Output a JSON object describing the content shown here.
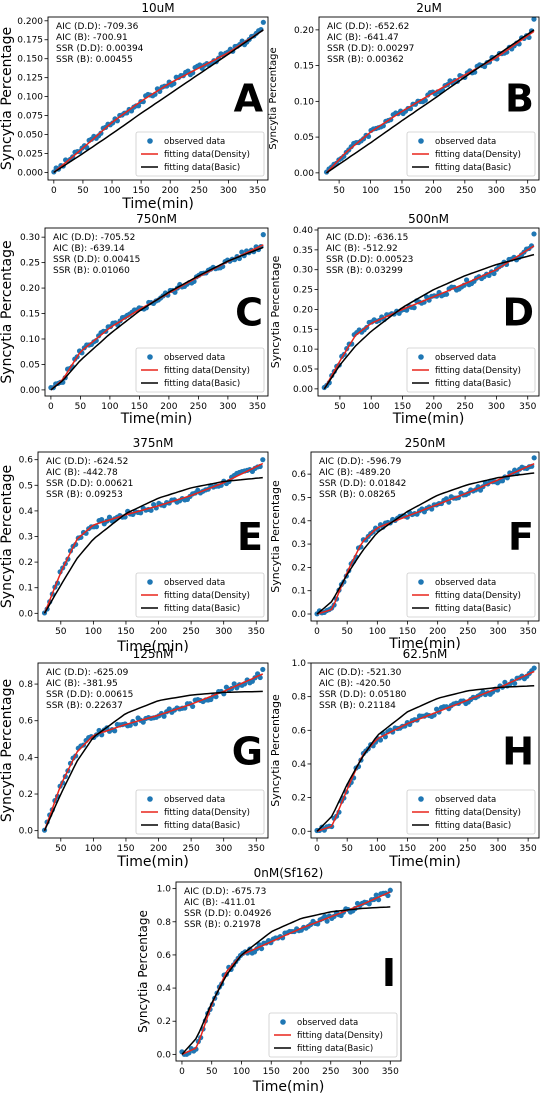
{
  "figure": {
    "observed_color": "#1f77b4",
    "density_color": "#e8251c",
    "basic_color": "#000000"
  },
  "chart_data": [
    {
      "type": "scatter",
      "panel": "A",
      "title": "10uM",
      "xlabel": "Time(min)",
      "ylabel": "Syncytia Percentage",
      "xlim": [
        -10,
        368
      ],
      "ylim": [
        -0.01,
        0.205
      ],
      "xticks": [
        0,
        50,
        100,
        150,
        200,
        250,
        300,
        350
      ],
      "yticks": [
        0.0,
        0.025,
        0.05,
        0.075,
        0.1,
        0.125,
        0.15,
        0.175,
        0.2
      ],
      "ytick_labels": [
        "0.000",
        "0.025",
        "0.050",
        "0.075",
        "0.100",
        "0.125",
        "0.150",
        "0.175",
        "0.200"
      ],
      "stats": [
        "AIC (D.D): -709.36",
        "AIC (B): -700.91",
        "SSR (D.D): 0.00394",
        "SSR (B): 0.00455"
      ],
      "legend": [
        "observed data",
        "fitting data(Density)",
        "fitting data(Basic)"
      ],
      "x_range": [
        0,
        360
      ],
      "n_points": 90,
      "density_curve": [
        [
          0,
          0.0
        ],
        [
          50,
          0.032
        ],
        [
          100,
          0.066
        ],
        [
          150,
          0.094
        ],
        [
          200,
          0.118
        ],
        [
          250,
          0.138
        ],
        [
          300,
          0.158
        ],
        [
          360,
          0.188
        ]
      ],
      "basic_curve": [
        [
          0,
          0.0
        ],
        [
          50,
          0.025
        ],
        [
          100,
          0.051
        ],
        [
          150,
          0.078
        ],
        [
          200,
          0.104
        ],
        [
          250,
          0.13
        ],
        [
          300,
          0.156
        ],
        [
          360,
          0.188
        ]
      ],
      "observed_end": 0.198
    },
    {
      "type": "scatter",
      "panel": "B",
      "title": "2uM",
      "xlabel": "",
      "ylabel": "Syncytia Percentage",
      "xlim": [
        18,
        368
      ],
      "ylim": [
        -0.01,
        0.218
      ],
      "xticks": [
        50,
        100,
        150,
        200,
        250,
        300,
        350
      ],
      "yticks": [
        0.0,
        0.05,
        0.1,
        0.15,
        0.2
      ],
      "ytick_labels": [
        "0.00",
        "0.05",
        "0.10",
        "0.15",
        "0.20"
      ],
      "stats": [
        "AIC (D.D): -652.62",
        "AIC (B): -641.47",
        "SSR (D.D): 0.00297",
        "SSR (B): 0.00362"
      ],
      "legend": [
        "observed data",
        "fitting data(Density)",
        "fitting data(Basic)"
      ],
      "x_range": [
        30,
        360
      ],
      "n_points": 85,
      "density_curve": [
        [
          30,
          0.0
        ],
        [
          60,
          0.028
        ],
        [
          100,
          0.057
        ],
        [
          150,
          0.086
        ],
        [
          200,
          0.112
        ],
        [
          250,
          0.137
        ],
        [
          300,
          0.161
        ],
        [
          360,
          0.198
        ]
      ],
      "basic_curve": [
        [
          30,
          0.0
        ],
        [
          60,
          0.018
        ],
        [
          100,
          0.042
        ],
        [
          150,
          0.073
        ],
        [
          200,
          0.103
        ],
        [
          250,
          0.134
        ],
        [
          300,
          0.164
        ],
        [
          360,
          0.2
        ]
      ],
      "observed_end": 0.215
    },
    {
      "type": "scatter",
      "panel": "C",
      "title": "750nM",
      "xlabel": "Time(min)",
      "ylabel": "Syncytia Percentage",
      "xlim": [
        -10,
        368
      ],
      "ylim": [
        -0.012,
        0.318
      ],
      "xticks": [
        0,
        50,
        100,
        150,
        200,
        250,
        300,
        350
      ],
      "yticks": [
        0.0,
        0.05,
        0.1,
        0.15,
        0.2,
        0.25,
        0.3
      ],
      "ytick_labels": [
        "0.00",
        "0.05",
        "0.10",
        "0.15",
        "0.20",
        "0.25",
        "0.30"
      ],
      "stats": [
        "AIC (D.D): -705.52",
        "AIC (B): -639.14",
        "SSR (D.D): 0.00415",
        "SSR (B): 0.01060"
      ],
      "legend": [
        "observed data",
        "fitting data(Density)",
        "fitting data(Basic)"
      ],
      "x_range": [
        0,
        360
      ],
      "n_points": 90,
      "density_curve": [
        [
          0,
          0.0
        ],
        [
          20,
          0.02
        ],
        [
          50,
          0.075
        ],
        [
          100,
          0.122
        ],
        [
          150,
          0.158
        ],
        [
          200,
          0.19
        ],
        [
          250,
          0.222
        ],
        [
          300,
          0.252
        ],
        [
          360,
          0.285
        ]
      ],
      "basic_curve": [
        [
          0,
          0.0
        ],
        [
          20,
          0.018
        ],
        [
          50,
          0.058
        ],
        [
          100,
          0.11
        ],
        [
          150,
          0.155
        ],
        [
          200,
          0.192
        ],
        [
          250,
          0.224
        ],
        [
          300,
          0.253
        ],
        [
          360,
          0.28
        ]
      ],
      "observed_end": 0.305
    },
    {
      "type": "scatter",
      "panel": "D",
      "title": "500nM",
      "xlabel": "Time(min)",
      "ylabel": "Syncytia Percentage",
      "xlim": [
        15,
        368
      ],
      "ylim": [
        -0.018,
        0.405
      ],
      "xticks": [
        50,
        100,
        150,
        200,
        250,
        300,
        350
      ],
      "yticks": [
        0.0,
        0.05,
        0.1,
        0.15,
        0.2,
        0.25,
        0.3,
        0.35,
        0.4
      ],
      "ytick_labels": [
        "0.00",
        "0.05",
        "0.10",
        "0.15",
        "0.20",
        "0.25",
        "0.30",
        "0.35",
        "0.40"
      ],
      "stats": [
        "AIC (D.D): -636.15",
        "AIC (B): -512.92",
        "SSR (D.D): 0.00523",
        "SSR (B): 0.03299"
      ],
      "legend": [
        "observed data",
        "fitting data(Density)",
        "fitting data(Basic)"
      ],
      "x_range": [
        25,
        360
      ],
      "n_points": 85,
      "density_curve": [
        [
          25,
          0.0
        ],
        [
          50,
          0.07
        ],
        [
          75,
          0.135
        ],
        [
          100,
          0.165
        ],
        [
          150,
          0.2
        ],
        [
          200,
          0.232
        ],
        [
          250,
          0.265
        ],
        [
          300,
          0.3
        ],
        [
          360,
          0.36
        ]
      ],
      "basic_curve": [
        [
          25,
          0.0
        ],
        [
          50,
          0.06
        ],
        [
          75,
          0.108
        ],
        [
          100,
          0.145
        ],
        [
          150,
          0.205
        ],
        [
          200,
          0.25
        ],
        [
          250,
          0.285
        ],
        [
          300,
          0.313
        ],
        [
          360,
          0.338
        ]
      ],
      "observed_end": 0.39
    },
    {
      "type": "scatter",
      "panel": "E",
      "title": "375nM",
      "xlabel": "Time(min)",
      "ylabel": "Syncytia Percentage",
      "xlim": [
        15,
        368
      ],
      "ylim": [
        -0.03,
        0.63
      ],
      "xticks": [
        50,
        100,
        150,
        200,
        250,
        300,
        350
      ],
      "yticks": [
        0.0,
        0.1,
        0.2,
        0.3,
        0.4,
        0.5,
        0.6
      ],
      "ytick_labels": [
        "0.0",
        "0.1",
        "0.2",
        "0.3",
        "0.4",
        "0.5",
        "0.6"
      ],
      "stats": [
        "AIC (D.D): -624.52",
        "AIC (B): -442.78",
        "SSR (D.D): 0.00621",
        "SSR (B): 0.09253"
      ],
      "legend": [
        "observed data",
        "fitting data(Density)",
        "fitting data(Basic)"
      ],
      "x_range": [
        25,
        360
      ],
      "n_points": 85,
      "density_curve": [
        [
          25,
          0.0
        ],
        [
          50,
          0.16
        ],
        [
          75,
          0.29
        ],
        [
          100,
          0.345
        ],
        [
          150,
          0.385
        ],
        [
          200,
          0.42
        ],
        [
          250,
          0.46
        ],
        [
          300,
          0.51
        ],
        [
          360,
          0.585
        ]
      ],
      "basic_curve": [
        [
          25,
          0.0
        ],
        [
          50,
          0.11
        ],
        [
          75,
          0.215
        ],
        [
          100,
          0.29
        ],
        [
          150,
          0.39
        ],
        [
          200,
          0.45
        ],
        [
          250,
          0.49
        ],
        [
          300,
          0.515
        ],
        [
          360,
          0.53
        ]
      ],
      "observed_end": 0.6
    },
    {
      "type": "scatter",
      "panel": "F",
      "title": "250nM",
      "xlabel": "Time(min)",
      "ylabel": "Syncytia Percentage",
      "xlim": [
        -10,
        368
      ],
      "ylim": [
        -0.03,
        0.695
      ],
      "xticks": [
        0,
        50,
        100,
        150,
        200,
        250,
        300,
        350
      ],
      "yticks": [
        0.0,
        0.1,
        0.2,
        0.3,
        0.4,
        0.5,
        0.6
      ],
      "ytick_labels": [
        "0.0",
        "0.1",
        "0.2",
        "0.3",
        "0.4",
        "0.5",
        "0.6"
      ],
      "stats": [
        "AIC (D.D): -596.79",
        "AIC (B): -489.20",
        "SSR (D.D): 0.01842",
        "SSR (B): 0.08265"
      ],
      "legend": [
        "observed data",
        "fitting data(Density)",
        "fitting data(Basic)"
      ],
      "x_range": [
        0,
        360
      ],
      "n_points": 90,
      "density_curve": [
        [
          0,
          0.0
        ],
        [
          25,
          0.02
        ],
        [
          50,
          0.18
        ],
        [
          75,
          0.31
        ],
        [
          100,
          0.37
        ],
        [
          150,
          0.42
        ],
        [
          200,
          0.47
        ],
        [
          250,
          0.52
        ],
        [
          300,
          0.575
        ],
        [
          360,
          0.645
        ]
      ],
      "basic_curve": [
        [
          0,
          0.0
        ],
        [
          25,
          0.055
        ],
        [
          50,
          0.17
        ],
        [
          75,
          0.27
        ],
        [
          100,
          0.35
        ],
        [
          150,
          0.44
        ],
        [
          200,
          0.51
        ],
        [
          250,
          0.555
        ],
        [
          300,
          0.585
        ],
        [
          360,
          0.605
        ]
      ],
      "observed_end": 0.67
    },
    {
      "type": "scatter",
      "panel": "G",
      "title": "125nM",
      "xlabel": "Time(min)",
      "ylabel": "Syncytia Percentage",
      "xlim": [
        15,
        368
      ],
      "ylim": [
        -0.04,
        0.915
      ],
      "xticks": [
        50,
        100,
        150,
        200,
        250,
        300,
        350
      ],
      "yticks": [
        0.0,
        0.2,
        0.4,
        0.6,
        0.8
      ],
      "ytick_labels": [
        "0.0",
        "0.2",
        "0.4",
        "0.6",
        "0.8"
      ],
      "stats": [
        "AIC (D.D): -625.09",
        "AIC (B): -381.95",
        "SSR (D.D): 0.00615",
        "SSR (B): 0.22637"
      ],
      "legend": [
        "observed data",
        "fitting data(Density)",
        "fitting data(Basic)"
      ],
      "x_range": [
        25,
        360
      ],
      "n_points": 85,
      "density_curve": [
        [
          25,
          0.0
        ],
        [
          50,
          0.25
        ],
        [
          75,
          0.43
        ],
        [
          100,
          0.52
        ],
        [
          150,
          0.58
        ],
        [
          200,
          0.63
        ],
        [
          250,
          0.69
        ],
        [
          300,
          0.76
        ],
        [
          360,
          0.855
        ]
      ],
      "basic_curve": [
        [
          25,
          0.0
        ],
        [
          50,
          0.2
        ],
        [
          75,
          0.38
        ],
        [
          100,
          0.51
        ],
        [
          150,
          0.64
        ],
        [
          200,
          0.71
        ],
        [
          250,
          0.74
        ],
        [
          300,
          0.755
        ],
        [
          360,
          0.76
        ]
      ],
      "observed_end": 0.88
    },
    {
      "type": "scatter",
      "panel": "H",
      "title": "62.5nM",
      "xlabel": "Time(min)",
      "ylabel": "Syncytia Percentage",
      "xlim": [
        -10,
        368
      ],
      "ylim": [
        -0.04,
        1.0
      ],
      "xticks": [
        0,
        50,
        100,
        150,
        200,
        250,
        300,
        350
      ],
      "yticks": [
        0.0,
        0.2,
        0.4,
        0.6,
        0.8,
        1.0
      ],
      "ytick_labels": [
        "0.0",
        "0.2",
        "0.4",
        "0.6",
        "0.8",
        "1.0"
      ],
      "stats": [
        "AIC (D.D): -521.30",
        "AIC (B): -420.50",
        "SSR (D.D): 0.05180",
        "SSR (B): 0.21184"
      ],
      "legend": [
        "observed data",
        "fitting data(Density)",
        "fitting data(Basic)"
      ],
      "x_range": [
        0,
        360
      ],
      "n_points": 90,
      "density_curve": [
        [
          0,
          0.0
        ],
        [
          25,
          0.03
        ],
        [
          50,
          0.25
        ],
        [
          75,
          0.45
        ],
        [
          100,
          0.55
        ],
        [
          150,
          0.64
        ],
        [
          200,
          0.71
        ],
        [
          250,
          0.78
        ],
        [
          300,
          0.85
        ],
        [
          360,
          0.95
        ]
      ],
      "basic_curve": [
        [
          0,
          0.0
        ],
        [
          25,
          0.09
        ],
        [
          50,
          0.28
        ],
        [
          75,
          0.44
        ],
        [
          100,
          0.57
        ],
        [
          150,
          0.71
        ],
        [
          200,
          0.79
        ],
        [
          250,
          0.835
        ],
        [
          300,
          0.855
        ],
        [
          360,
          0.865
        ]
      ],
      "observed_end": 0.97
    },
    {
      "type": "scatter",
      "panel": "I",
      "title": "0nM(Sf162)",
      "xlabel": "Time(min)",
      "ylabel": "Syncytia Percentage",
      "xlim": [
        -10,
        368
      ],
      "ylim": [
        -0.04,
        1.04
      ],
      "xticks": [
        0,
        50,
        100,
        150,
        200,
        250,
        300,
        350
      ],
      "yticks": [
        0.0,
        0.2,
        0.4,
        0.6,
        0.8,
        1.0
      ],
      "ytick_labels": [
        "0.0",
        "0.2",
        "0.4",
        "0.6",
        "0.8",
        "1.0"
      ],
      "stats": [
        "AIC (D.D): -675.73",
        "AIC (B): -411.01",
        "SSR (D.D): 0.04926",
        "SSR (B): 0.21978"
      ],
      "legend": [
        "observed data",
        "fitting data(Density)",
        "fitting data(Basic)"
      ],
      "x_range": [
        0,
        350
      ],
      "n_points": 90,
      "density_curve": [
        [
          0,
          0.0
        ],
        [
          25,
          0.04
        ],
        [
          50,
          0.3
        ],
        [
          75,
          0.5
        ],
        [
          100,
          0.6
        ],
        [
          150,
          0.68
        ],
        [
          200,
          0.76
        ],
        [
          250,
          0.83
        ],
        [
          300,
          0.9
        ],
        [
          350,
          0.98
        ]
      ],
      "basic_curve": [
        [
          0,
          0.0
        ],
        [
          25,
          0.1
        ],
        [
          50,
          0.31
        ],
        [
          75,
          0.48
        ],
        [
          100,
          0.6
        ],
        [
          150,
          0.74
        ],
        [
          200,
          0.82
        ],
        [
          250,
          0.86
        ],
        [
          300,
          0.88
        ],
        [
          350,
          0.89
        ]
      ],
      "observed_end": 0.99
    }
  ]
}
